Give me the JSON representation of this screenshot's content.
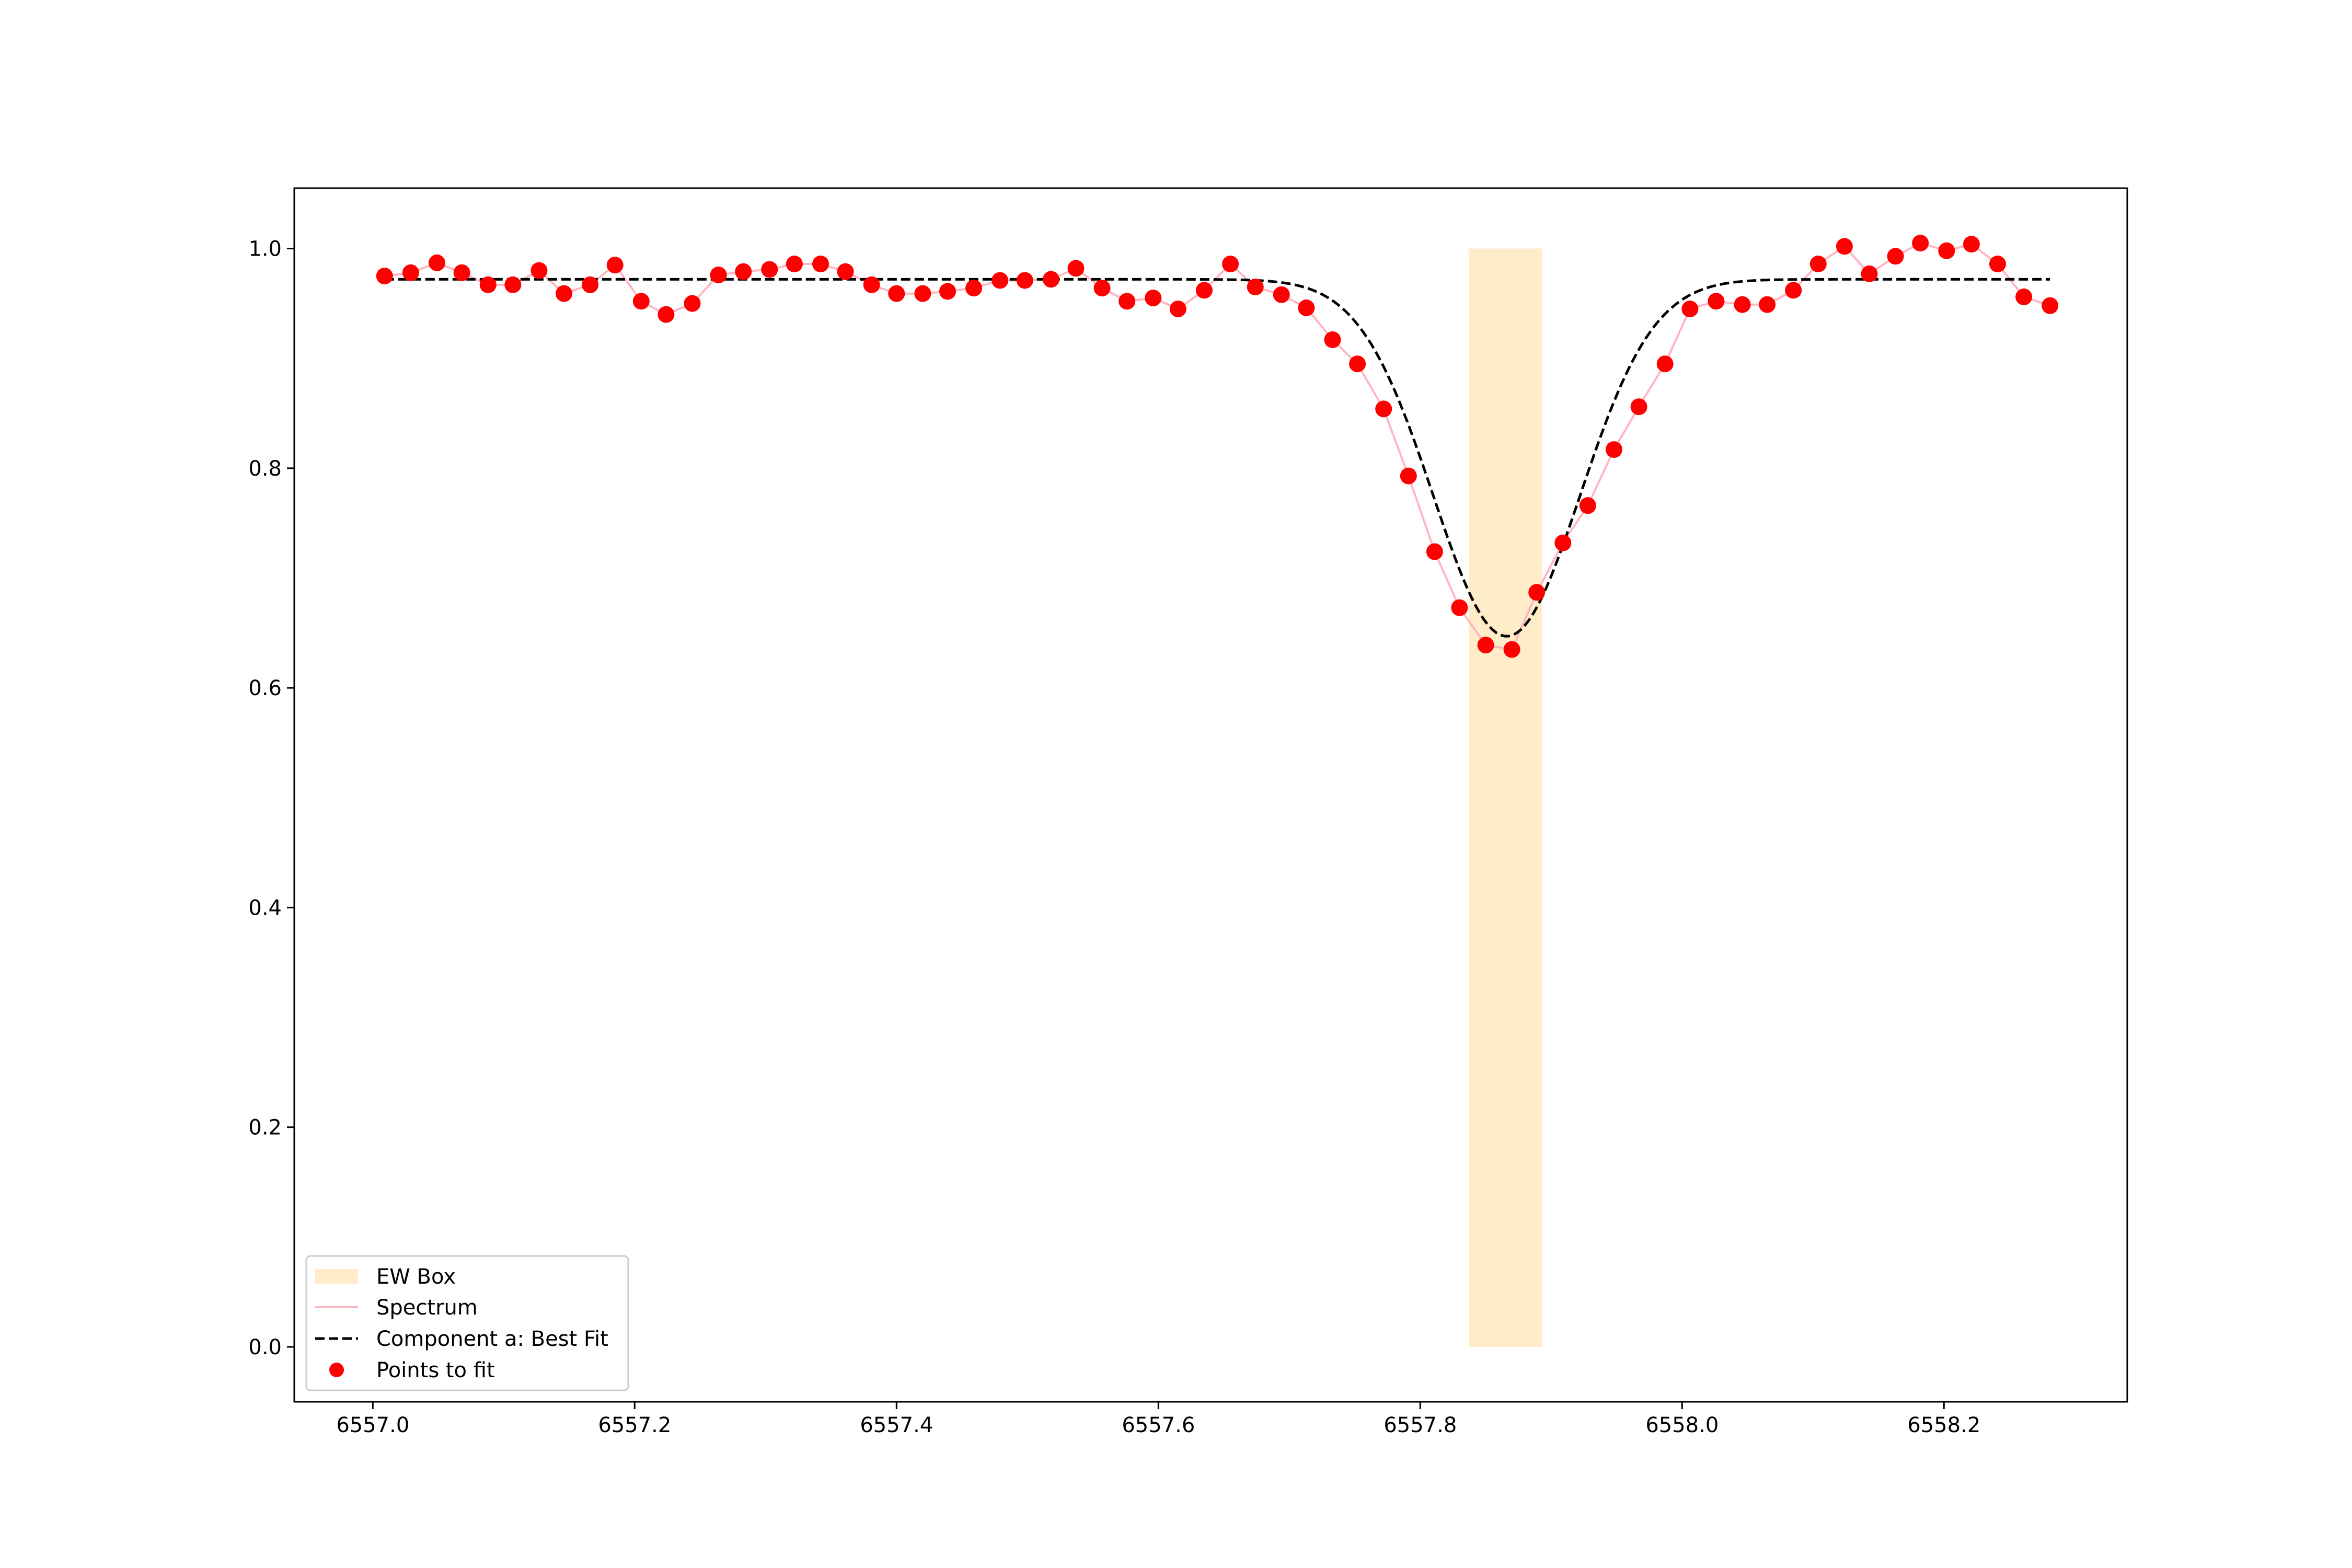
{
  "chart_data": {
    "type": "line",
    "title": "",
    "xlabel": "",
    "ylabel": "",
    "xlim": [
      6556.94,
      6558.34
    ],
    "ylim": [
      -0.05,
      1.055
    ],
    "grid": false,
    "legend_placement": "lower-left",
    "x_ticks": [
      {
        "value": 6557.0,
        "label": "6557.0"
      },
      {
        "value": 6557.2,
        "label": "6557.2"
      },
      {
        "value": 6557.4,
        "label": "6557.4"
      },
      {
        "value": 6557.6,
        "label": "6557.6"
      },
      {
        "value": 6557.8,
        "label": "6557.8"
      },
      {
        "value": 6558.0,
        "label": "6558.0"
      },
      {
        "value": 6558.2,
        "label": "6558.2"
      }
    ],
    "y_ticks": [
      {
        "value": 0.0,
        "label": "0.0"
      },
      {
        "value": 0.2,
        "label": "0.2"
      },
      {
        "value": 0.4,
        "label": "0.4"
      },
      {
        "value": 0.6,
        "label": "0.6"
      },
      {
        "value": 0.8,
        "label": "0.8"
      },
      {
        "value": 1.0,
        "label": "1.0"
      }
    ],
    "ew_box": {
      "name": "EW Box",
      "x_range": [
        6557.837,
        6557.893
      ],
      "y_range": [
        0.0,
        1.0
      ],
      "color": "#ffecc8"
    },
    "fit_model": {
      "name": "Component a: Best Fit",
      "continuum": 0.972,
      "depth": 0.325,
      "center": 6557.866,
      "sigma": 0.056,
      "x_range": [
        6557.009,
        6558.281
      ],
      "color": "#000000"
    },
    "series": [
      {
        "name": "Spectrum",
        "role": "spectrum",
        "color": "#ffb6c1",
        "x": [
          6557.009,
          6557.029,
          6557.049,
          6557.068,
          6557.088,
          6557.107,
          6557.127,
          6557.146,
          6557.166,
          6557.185,
          6557.205,
          6557.224,
          6557.244,
          6557.264,
          6557.283,
          6557.303,
          6557.322,
          6557.342,
          6557.361,
          6557.381,
          6557.4,
          6557.42,
          6557.439,
          6557.459,
          6557.479,
          6557.498,
          6557.518,
          6557.537,
          6557.557,
          6557.576,
          6557.596,
          6557.615,
          6557.635,
          6557.655,
          6557.674,
          6557.694,
          6557.713,
          6557.733,
          6557.752,
          6557.772,
          6557.791,
          6557.811,
          6557.83,
          6557.85,
          6557.87,
          6557.889,
          6557.909,
          6557.928,
          6557.948,
          6557.967,
          6557.987,
          6558.006,
          6558.026,
          6558.046,
          6558.065,
          6558.085,
          6558.104,
          6558.124,
          6558.143,
          6558.163,
          6558.182,
          6558.202,
          6558.221,
          6558.241,
          6558.261,
          6558.281
        ],
        "values": [
          0.975,
          0.978,
          0.987,
          0.978,
          0.967,
          0.967,
          0.98,
          0.959,
          0.967,
          0.985,
          0.952,
          0.94,
          0.95,
          0.976,
          0.979,
          0.981,
          0.986,
          0.986,
          0.979,
          0.967,
          0.959,
          0.959,
          0.961,
          0.964,
          0.971,
          0.971,
          0.972,
          0.982,
          0.964,
          0.952,
          0.955,
          0.945,
          0.962,
          0.986,
          0.965,
          0.958,
          0.946,
          0.917,
          0.895,
          0.854,
          0.793,
          0.724,
          0.673,
          0.639,
          0.635,
          0.687,
          0.732,
          0.766,
          0.817,
          0.856,
          0.895,
          0.945,
          0.952,
          0.949,
          0.949,
          0.962,
          0.986,
          1.002,
          0.977,
          0.993,
          1.005,
          0.998,
          1.004,
          0.986,
          0.956,
          0.948
        ]
      },
      {
        "name": "Points to fit",
        "role": "points",
        "color": "#ff0000"
      }
    ]
  }
}
